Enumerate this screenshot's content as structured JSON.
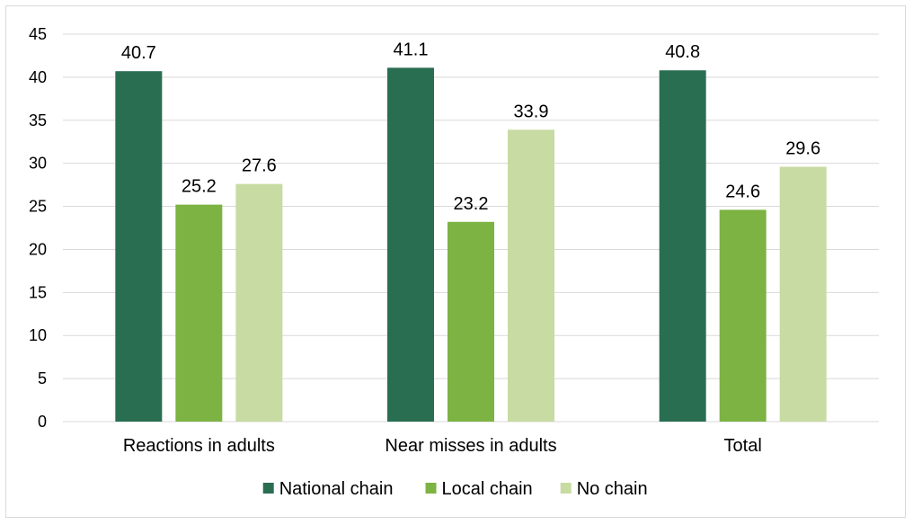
{
  "chart_data": {
    "type": "bar",
    "categories": [
      "Reactions in adults",
      "Near misses in adults",
      "Total"
    ],
    "series": [
      {
        "name": "National chain",
        "values": [
          40.7,
          41.1,
          40.8
        ],
        "color": "#2a6e52"
      },
      {
        "name": "Local chain",
        "values": [
          25.2,
          23.2,
          24.6
        ],
        "color": "#7cb342"
      },
      {
        "name": "No chain",
        "values": [
          27.6,
          33.9,
          29.6
        ],
        "color": "#c8dba3"
      }
    ],
    "title": "",
    "xlabel": "",
    "ylabel": "",
    "ylim": [
      0,
      45
    ],
    "yticks": [
      0,
      5,
      10,
      15,
      20,
      25,
      30,
      35,
      40,
      45
    ],
    "grid": true,
    "legend_position": "bottom",
    "gridline_color": "#d9d9d9"
  }
}
